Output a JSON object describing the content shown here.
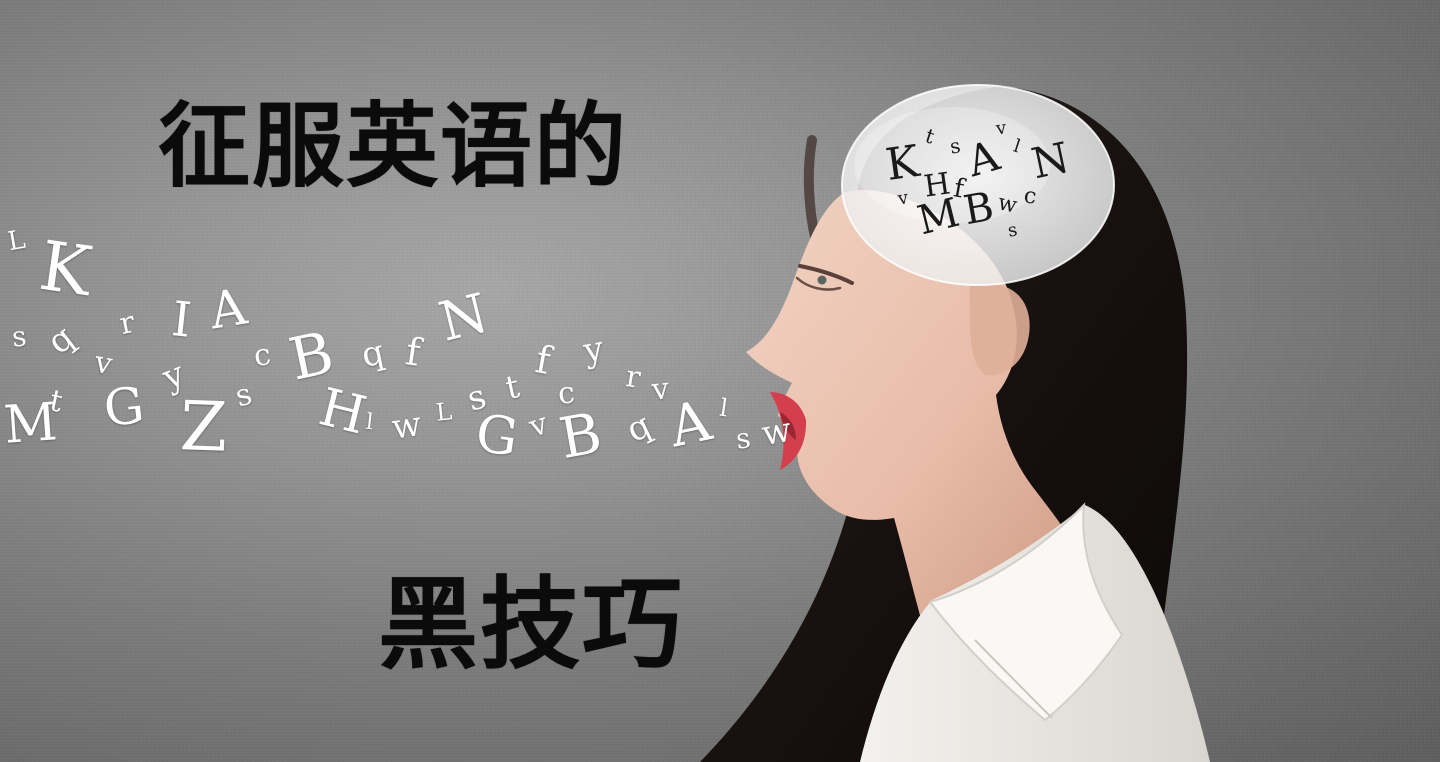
{
  "image": {
    "title_top": "征服英语的",
    "title_bottom": "黑技巧",
    "flying_letters": [
      "L",
      "K",
      "s",
      "q",
      "v",
      "r",
      "I",
      "A",
      "M",
      "t",
      "G",
      "y",
      "Z",
      "s",
      "c",
      "B",
      "q",
      "f",
      "N",
      "H",
      "l",
      "w",
      "L",
      "s",
      "t",
      "f",
      "y",
      "c",
      "r",
      "v",
      "G",
      "v",
      "B",
      "q",
      "A",
      "l",
      "s",
      "w"
    ],
    "thought_bubble_letters": [
      "K",
      "t",
      "s",
      "A",
      "l",
      "v",
      "N",
      "H",
      "f",
      "B",
      "w",
      "c",
      "v",
      "M",
      "s"
    ],
    "palette": {
      "background": "#8d8d8d",
      "title_text": "#0b0b0b",
      "letters": "#ffffff",
      "bubble_letters": "#1a1a1a"
    }
  }
}
